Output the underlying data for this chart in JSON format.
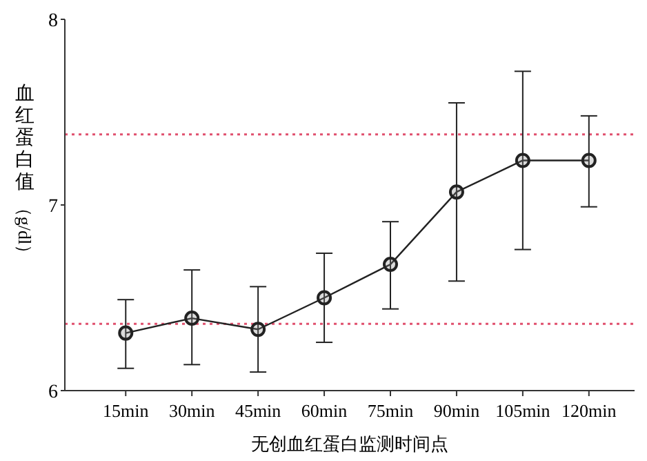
{
  "chart_data": {
    "type": "line",
    "xlabel": "无创血红蛋白监测时间点",
    "ylabel": "血红蛋白值（g/dl）",
    "categories": [
      "15min",
      "30min",
      "45min",
      "60min",
      "75min",
      "90min",
      "105min",
      "120min"
    ],
    "series": [
      {
        "color": "#222222",
        "values": [
          6.31,
          6.39,
          6.33,
          6.5,
          6.68,
          7.07,
          7.24,
          7.24
        ],
        "errors": [
          [
            6.12,
            6.49
          ],
          [
            6.14,
            6.65
          ],
          [
            6.1,
            6.56
          ],
          [
            6.26,
            6.74
          ],
          [
            6.44,
            6.91
          ],
          [
            6.59,
            7.55
          ],
          [
            6.76,
            7.72
          ],
          [
            6.99,
            7.48
          ]
        ]
      }
    ],
    "ylim": [
      6,
      8
    ],
    "yticks": [
      6,
      7,
      8
    ],
    "marker": "circle",
    "line_style": "solid",
    "grid": false,
    "ref_lines": [
      {
        "axis": "y",
        "value": 7.38,
        "color": "#e0506e",
        "line_style": "dotted"
      },
      {
        "axis": "y",
        "value": 6.36,
        "color": "#e0506e",
        "line_style": "dotted"
      }
    ]
  }
}
